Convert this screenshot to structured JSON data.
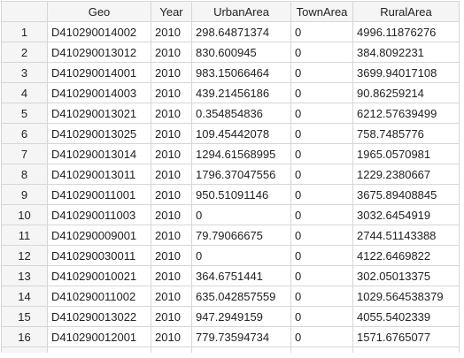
{
  "table": {
    "columns": [
      "Geo",
      "Year",
      "UrbanArea",
      "TownArea",
      "RuralArea"
    ],
    "rows": [
      {
        "n": "1",
        "cells": [
          "D410290014002",
          "2010",
          "298.64871374",
          "0",
          "4996.11876276"
        ]
      },
      {
        "n": "2",
        "cells": [
          "D410290013012",
          "2010",
          "830.600945",
          "0",
          "384.8092231"
        ]
      },
      {
        "n": "3",
        "cells": [
          "D410290014001",
          "2010",
          "983.15066464",
          "0",
          "3699.94017108"
        ]
      },
      {
        "n": "4",
        "cells": [
          "D410290014003",
          "2010",
          "439.21456186",
          "0",
          "90.86259214"
        ]
      },
      {
        "n": "5",
        "cells": [
          "D410290013021",
          "2010",
          "0.354854836",
          "0",
          "6212.57639499"
        ]
      },
      {
        "n": "6",
        "cells": [
          "D410290013025",
          "2010",
          "109.45442078",
          "0",
          "758.7485776"
        ]
      },
      {
        "n": "7",
        "cells": [
          "D410290013014",
          "2010",
          "1294.61568995",
          "0",
          "1965.0570981"
        ]
      },
      {
        "n": "8",
        "cells": [
          "D410290013011",
          "2010",
          "1796.37047556",
          "0",
          "1229.2380667"
        ]
      },
      {
        "n": "9",
        "cells": [
          "D410290011001",
          "2010",
          "950.51091146",
          "0",
          "3675.89408845"
        ]
      },
      {
        "n": "10",
        "cells": [
          "D410290011003",
          "2010",
          "0",
          "0",
          "3032.6454919"
        ]
      },
      {
        "n": "11",
        "cells": [
          "D410290009001",
          "2010",
          "79.79066675",
          "0",
          "2744.51143388"
        ]
      },
      {
        "n": "12",
        "cells": [
          "D410290030011",
          "2010",
          "0",
          "0",
          "4122.6469822"
        ]
      },
      {
        "n": "13",
        "cells": [
          "D410290010021",
          "2010",
          "364.6751441",
          "0",
          "302.05013375"
        ]
      },
      {
        "n": "14",
        "cells": [
          "D410290011002",
          "2010",
          "635.042857559",
          "0",
          "1029.564538379"
        ]
      },
      {
        "n": "15",
        "cells": [
          "D410290013022",
          "2010",
          "947.2949159",
          "0",
          "4055.5402339"
        ]
      },
      {
        "n": "16",
        "cells": [
          "D410290012001",
          "2010",
          "779.73594734",
          "0",
          "1571.6765077"
        ]
      }
    ]
  }
}
